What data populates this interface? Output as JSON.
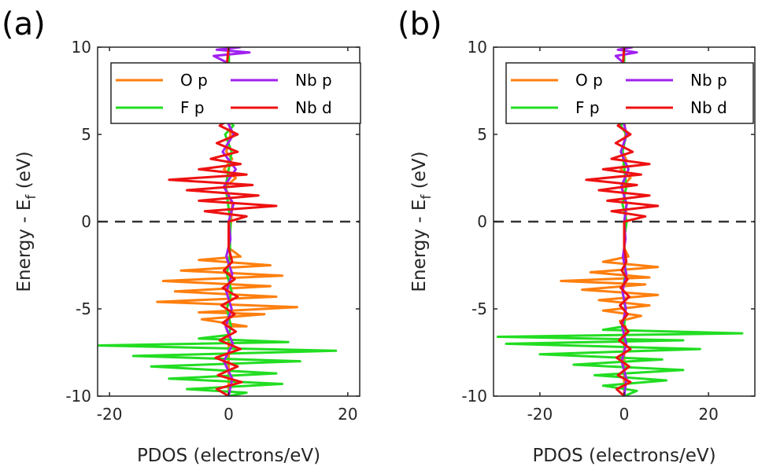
{
  "chart_data": [
    {
      "type": "line",
      "panel_label": "(a)",
      "xlabel": "PDOS (electrons/eV)",
      "ylabel_main": "Energy - E",
      "ylabel_sub": "f",
      "ylabel_suffix": " (eV)",
      "xlim": [
        -22,
        22
      ],
      "ylim": [
        -10,
        10
      ],
      "xticks": [
        -20,
        0,
        20
      ],
      "xtick_labels": [
        "-20",
        "0",
        "20"
      ],
      "yticks": [
        10,
        5,
        0,
        -5,
        -10
      ],
      "ytick_labels": [
        "10",
        "5",
        "0",
        "-5",
        "-10"
      ],
      "fermi_level": 0,
      "legend": [
        "O p",
        "F p",
        "Nb p",
        "Nb d"
      ],
      "series": [
        {
          "name": "O p",
          "color": "#ff7f0e",
          "points": [
            [
              -10,
              0
            ],
            [
              -8,
              0
            ],
            [
              -6.5,
              0
            ],
            [
              -6,
              -0.5
            ],
            [
              -6,
              3
            ],
            [
              -5.6,
              -4.5
            ],
            [
              -5.3,
              6
            ],
            [
              -5.2,
              -5
            ],
            [
              -4.9,
              11.5
            ],
            [
              -4.6,
              -12
            ],
            [
              -4.3,
              8
            ],
            [
              -4,
              -9
            ],
            [
              -3.7,
              7
            ],
            [
              -3.4,
              -11
            ],
            [
              -3.1,
              9
            ],
            [
              -2.8,
              -8
            ],
            [
              -2.5,
              7
            ],
            [
              -2.2,
              -5
            ],
            [
              -2,
              2
            ],
            [
              -1.5,
              0
            ],
            [
              0,
              0.4
            ],
            [
              1,
              0.6
            ],
            [
              2,
              -0.6
            ],
            [
              2.5,
              1.2
            ],
            [
              3,
              -0.8
            ],
            [
              3.6,
              0.6
            ],
            [
              4,
              -0.4
            ],
            [
              5,
              0.3
            ],
            [
              6,
              0
            ],
            [
              10,
              0
            ]
          ]
        },
        {
          "name": "F p",
          "color": "#22dd22",
          "points": [
            [
              -10,
              0
            ],
            [
              -9.8,
              3
            ],
            [
              -9.6,
              -7
            ],
            [
              -9.3,
              9
            ],
            [
              -9,
              -10
            ],
            [
              -8.7,
              8
            ],
            [
              -8.3,
              -13
            ],
            [
              -8,
              12
            ],
            [
              -7.7,
              -16
            ],
            [
              -7.4,
              18
            ],
            [
              -7.1,
              -22
            ],
            [
              -6.9,
              10
            ],
            [
              -6.7,
              -5
            ],
            [
              -6.5,
              0
            ],
            [
              -6,
              0.4
            ],
            [
              -5,
              -0.3
            ],
            [
              -4,
              0.5
            ],
            [
              -3,
              -0.3
            ],
            [
              -2,
              0.2
            ],
            [
              0,
              0.3
            ],
            [
              2,
              -0.5
            ],
            [
              4,
              0.5
            ],
            [
              5,
              -0.6
            ],
            [
              5.5,
              0.8
            ],
            [
              6,
              -0.5
            ],
            [
              7,
              0.2
            ],
            [
              10,
              0
            ]
          ]
        },
        {
          "name": "Nb p",
          "color": "#a020f0",
          "points": [
            [
              -10,
              0
            ],
            [
              -9,
              0.6
            ],
            [
              -8,
              -0.8
            ],
            [
              -7,
              0.7
            ],
            [
              -6,
              -0.5
            ],
            [
              -5,
              0.5
            ],
            [
              -4,
              -0.4
            ],
            [
              -3,
              0.6
            ],
            [
              -2,
              -0.4
            ],
            [
              -1,
              0.3
            ],
            [
              0,
              0
            ],
            [
              1,
              0.8
            ],
            [
              2,
              -0.8
            ],
            [
              3,
              1.2
            ],
            [
              4,
              -1
            ],
            [
              5,
              0.8
            ],
            [
              6,
              -0.6
            ],
            [
              7,
              0.3
            ],
            [
              8,
              -0.2
            ],
            [
              9,
              0.4
            ],
            [
              9.5,
              -2.5
            ],
            [
              9.7,
              3.5
            ],
            [
              9.85,
              -2
            ],
            [
              10,
              2
            ]
          ]
        },
        {
          "name": "Nb d",
          "color": "#ee1111",
          "points": [
            [
              -10,
              0
            ],
            [
              -9.6,
              -2
            ],
            [
              -9.2,
              2.2
            ],
            [
              -8.8,
              -1.8
            ],
            [
              -8.3,
              1.5
            ],
            [
              -7.8,
              -2.2
            ],
            [
              -7.3,
              2
            ],
            [
              -6.8,
              -1.5
            ],
            [
              -6.3,
              1.2
            ],
            [
              -5.8,
              -1
            ],
            [
              -5.3,
              1
            ],
            [
              -4.8,
              -1.2
            ],
            [
              -4.3,
              1.5
            ],
            [
              -3.8,
              -1
            ],
            [
              -3.3,
              1
            ],
            [
              -2.8,
              -0.8
            ],
            [
              -2.3,
              0.6
            ],
            [
              -1.5,
              0
            ],
            [
              0,
              0
            ],
            [
              0.3,
              3
            ],
            [
              0.6,
              -4
            ],
            [
              0.9,
              8
            ],
            [
              1.2,
              -5
            ],
            [
              1.5,
              5
            ],
            [
              1.8,
              -7
            ],
            [
              2.1,
              4
            ],
            [
              2.4,
              -10
            ],
            [
              2.7,
              3
            ],
            [
              3,
              -5
            ],
            [
              3.3,
              2
            ],
            [
              3.6,
              -3
            ],
            [
              4,
              1.5
            ],
            [
              4.5,
              -2
            ],
            [
              5,
              1.5
            ],
            [
              5.5,
              -1.5
            ],
            [
              6,
              0.8
            ],
            [
              7,
              -0.5
            ],
            [
              8,
              0.5
            ],
            [
              9,
              -0.3
            ],
            [
              10,
              0
            ]
          ]
        }
      ]
    },
    {
      "type": "line",
      "panel_label": "(b)",
      "xlabel": "PDOS (electrons/eV)",
      "ylabel_main": "Energy - E",
      "ylabel_sub": "f",
      "ylabel_suffix": " (eV)",
      "xlim": [
        -31,
        31
      ],
      "ylim": [
        -10,
        10
      ],
      "xticks": [
        -20,
        0,
        20
      ],
      "xtick_labels": [
        "-20",
        "0",
        "20"
      ],
      "yticks": [
        10,
        5,
        0,
        -5,
        -10
      ],
      "ytick_labels": [
        "10",
        "5",
        "0",
        "-5",
        "-10"
      ],
      "fermi_level": 0,
      "legend": [
        "O p",
        "F p",
        "Nb p",
        "Nb d"
      ],
      "series": [
        {
          "name": "O p",
          "color": "#ff7f0e",
          "points": [
            [
              -10,
              0
            ],
            [
              -7,
              0
            ],
            [
              -6,
              0.3
            ],
            [
              -5.7,
              -1
            ],
            [
              -5.4,
              4
            ],
            [
              -5.1,
              -5
            ],
            [
              -4.8,
              6
            ],
            [
              -4.5,
              -6
            ],
            [
              -4.2,
              8
            ],
            [
              -3.9,
              -10
            ],
            [
              -3.6,
              5
            ],
            [
              -3.4,
              -15
            ],
            [
              -3.2,
              6
            ],
            [
              -2.9,
              -8
            ],
            [
              -2.6,
              8
            ],
            [
              -2.3,
              -5
            ],
            [
              -2,
              1
            ],
            [
              -1.5,
              0
            ],
            [
              0,
              0.3
            ],
            [
              1,
              0.5
            ],
            [
              2,
              -0.5
            ],
            [
              2.5,
              1.5
            ],
            [
              3,
              -0.8
            ],
            [
              3.5,
              0.6
            ],
            [
              4,
              -0.4
            ],
            [
              5,
              0.3
            ],
            [
              6,
              0
            ],
            [
              10,
              0
            ]
          ]
        },
        {
          "name": "F p",
          "color": "#22dd22",
          "points": [
            [
              -10,
              0
            ],
            [
              -9.7,
              3
            ],
            [
              -9.4,
              -5
            ],
            [
              -9.1,
              10
            ],
            [
              -8.8,
              -7
            ],
            [
              -8.5,
              14
            ],
            [
              -8.2,
              -12
            ],
            [
              -7.9,
              9
            ],
            [
              -7.6,
              -20
            ],
            [
              -7.3,
              18
            ],
            [
              -7,
              -28
            ],
            [
              -6.8,
              14
            ],
            [
              -6.6,
              -30
            ],
            [
              -6.4,
              28
            ],
            [
              -6.2,
              -5
            ],
            [
              -6,
              0
            ],
            [
              -5,
              0.3
            ],
            [
              -4,
              -0.4
            ],
            [
              -3,
              0.3
            ],
            [
              -1,
              0
            ],
            [
              0,
              0.6
            ],
            [
              1,
              -0.4
            ],
            [
              2,
              0.5
            ],
            [
              4,
              -0.4
            ],
            [
              5,
              0.5
            ],
            [
              5.5,
              -0.8
            ],
            [
              6,
              0.6
            ],
            [
              7,
              0
            ],
            [
              10,
              0
            ]
          ]
        },
        {
          "name": "Nb p",
          "color": "#a020f0",
          "points": [
            [
              -10,
              0
            ],
            [
              -9,
              0.5
            ],
            [
              -8,
              -0.6
            ],
            [
              -7,
              0.5
            ],
            [
              -6,
              -0.5
            ],
            [
              -5,
              0.4
            ],
            [
              -4,
              -0.4
            ],
            [
              -3,
              0.5
            ],
            [
              -2,
              -0.3
            ],
            [
              -1,
              0.3
            ],
            [
              0,
              0
            ],
            [
              1,
              0.6
            ],
            [
              2,
              -0.7
            ],
            [
              3,
              1
            ],
            [
              4,
              -0.8
            ],
            [
              5,
              0.6
            ],
            [
              6,
              -0.5
            ],
            [
              7,
              0.3
            ],
            [
              8,
              -0.2
            ],
            [
              9,
              0.3
            ],
            [
              9.5,
              -2
            ],
            [
              9.7,
              3
            ],
            [
              9.85,
              -1.5
            ],
            [
              10,
              2
            ]
          ]
        },
        {
          "name": "Nb d",
          "color": "#ee1111",
          "points": [
            [
              -10,
              0
            ],
            [
              -9.6,
              -1.8
            ],
            [
              -9.2,
              1.5
            ],
            [
              -8.8,
              -1.5
            ],
            [
              -8.3,
              1.2
            ],
            [
              -7.8,
              -1.8
            ],
            [
              -7.3,
              1.5
            ],
            [
              -6.8,
              -1.2
            ],
            [
              -6.3,
              1
            ],
            [
              -5.8,
              -0.8
            ],
            [
              -5.3,
              0.8
            ],
            [
              -4.8,
              -1
            ],
            [
              -4.3,
              1.2
            ],
            [
              -3.8,
              -0.8
            ],
            [
              -3.3,
              0.8
            ],
            [
              -2.8,
              -0.6
            ],
            [
              -2.3,
              0.5
            ],
            [
              -1.5,
              0
            ],
            [
              0,
              0
            ],
            [
              0.3,
              5
            ],
            [
              0.6,
              -3
            ],
            [
              0.9,
              8
            ],
            [
              1.2,
              -4
            ],
            [
              1.5,
              6
            ],
            [
              1.8,
              -6
            ],
            [
              2.1,
              3
            ],
            [
              2.4,
              -9
            ],
            [
              2.7,
              4
            ],
            [
              3,
              -5
            ],
            [
              3.3,
              6
            ],
            [
              3.6,
              -3
            ],
            [
              4,
              2
            ],
            [
              4.5,
              -2
            ],
            [
              5,
              1.5
            ],
            [
              5.5,
              -1.5
            ],
            [
              6,
              0.8
            ],
            [
              7,
              -0.5
            ],
            [
              8,
              0.5
            ],
            [
              9,
              -0.3
            ],
            [
              10,
              0
            ]
          ]
        }
      ]
    }
  ]
}
